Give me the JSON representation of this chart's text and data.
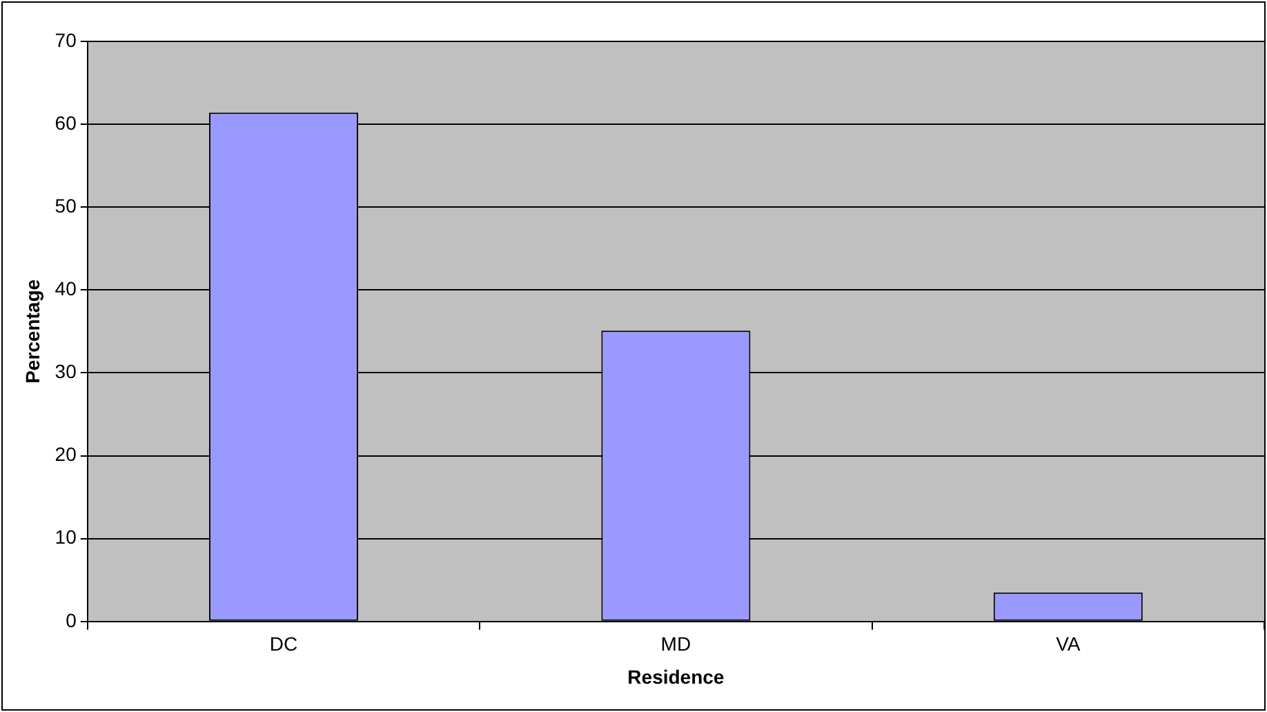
{
  "chart_data": {
    "type": "bar",
    "xlabel": "Residence",
    "ylabel": "Percentage",
    "categories": [
      "DC",
      "MD",
      "VA"
    ],
    "values": [
      61.4,
      35.1,
      3.5
    ],
    "color": "#9999ff",
    "ylim": [
      0,
      70
    ],
    "yticks": [
      0,
      10,
      20,
      30,
      40,
      50,
      60,
      70
    ],
    "grid": "y",
    "legend": false
  }
}
